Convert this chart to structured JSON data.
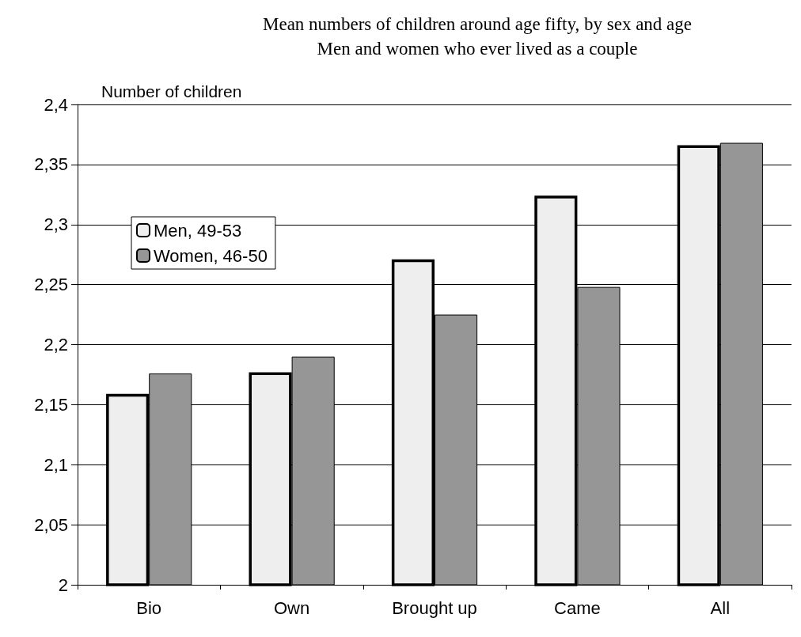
{
  "chart_data": {
    "type": "bar",
    "title": "Mean numbers of children around age fifty, by sex and age",
    "subtitle": "Men and women who ever lived as a couple",
    "ylabel": "Number of children",
    "categories": [
      "Bio",
      "Own",
      "Brought up",
      "Came",
      "All"
    ],
    "series": [
      {
        "name": "Men, 49-53",
        "color": "#eeeeee",
        "values": [
          2.159,
          2.177,
          2.271,
          2.324,
          2.366
        ]
      },
      {
        "name": "Women, 46-50",
        "color": "#969696",
        "values": [
          2.176,
          2.19,
          2.225,
          2.248,
          2.368
        ]
      }
    ],
    "ylim": [
      2,
      2.4
    ],
    "yticks": [
      {
        "value": 2,
        "label": "2"
      },
      {
        "value": 2.05,
        "label": "2,05"
      },
      {
        "value": 2.1,
        "label": "2,1"
      },
      {
        "value": 2.15,
        "label": "2,15"
      },
      {
        "value": 2.2,
        "label": "2,2"
      },
      {
        "value": 2.25,
        "label": "2,25"
      },
      {
        "value": 2.3,
        "label": "2,3"
      },
      {
        "value": 2.35,
        "label": "2,35"
      },
      {
        "value": 2.4,
        "label": "2,4"
      }
    ],
    "grid": "y",
    "legend": "top left"
  }
}
